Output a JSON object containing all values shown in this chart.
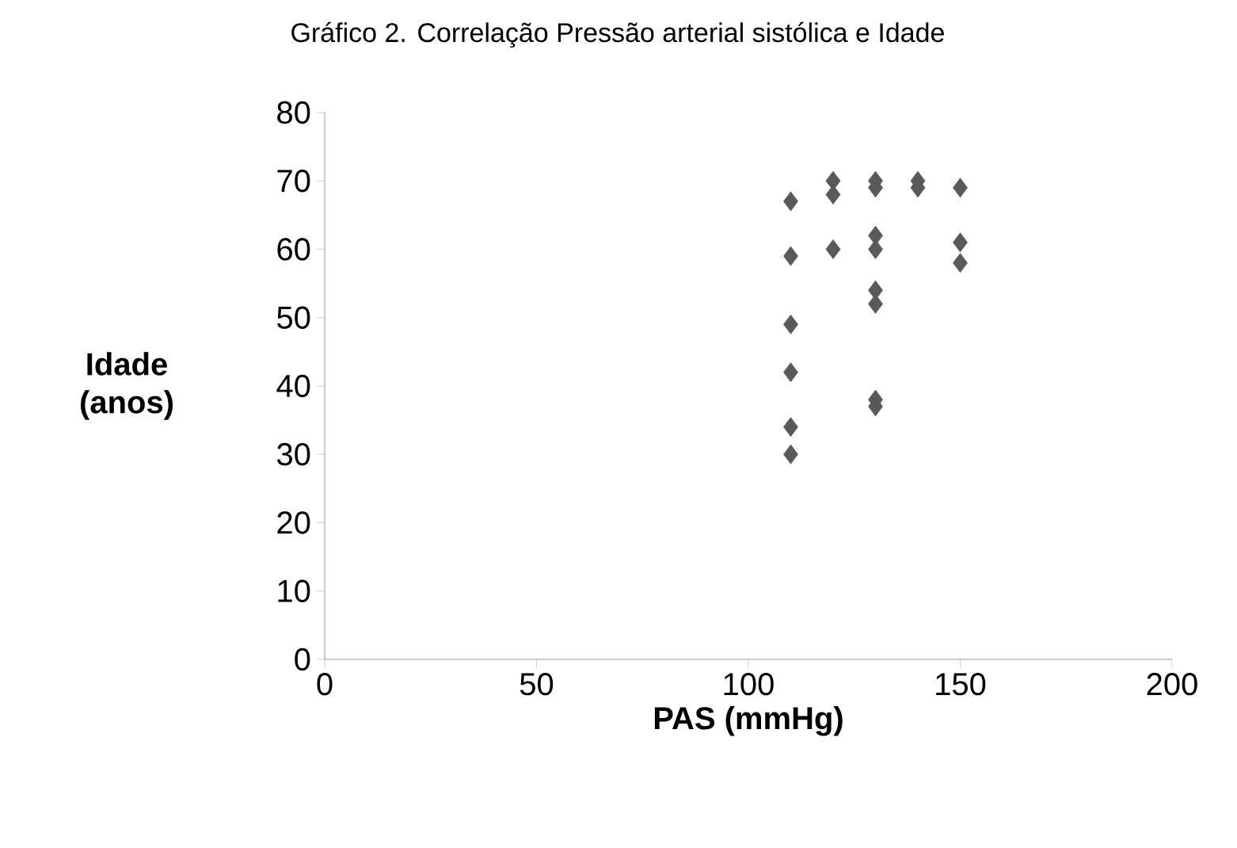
{
  "chart_data": {
    "type": "scatter",
    "title": "Gráfico 2. Correlação Pressão arterial sistólica e Idade",
    "xlabel": "**PAS (mmHg)**",
    "ylabel": "**Idade (anos)**",
    "x": [
      110,
      110,
      110,
      110,
      110,
      110,
      120,
      120,
      120,
      130,
      130,
      130,
      130,
      130,
      130,
      130,
      130,
      140,
      140,
      150,
      150,
      150
    ],
    "values": [
      67,
      59,
      49,
      42,
      34,
      30,
      70,
      68,
      60,
      70,
      69,
      62,
      60,
      54,
      52,
      38,
      37,
      70,
      69,
      69,
      61,
      58
    ],
    "color": "#595959",
    "marker": "diamond",
    "grid": false,
    "xlim": [
      0,
      200
    ],
    "xticks": [
      0,
      50,
      100,
      150,
      200
    ],
    "ylim": [
      0,
      80
    ],
    "yticks": [
      0,
      10,
      20,
      30,
      40,
      50,
      60,
      70,
      80
    ]
  }
}
